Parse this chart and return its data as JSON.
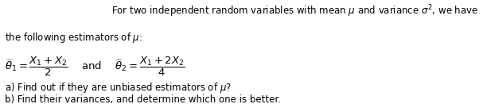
{
  "figsize": [
    6.07,
    1.31
  ],
  "dpi": 100,
  "background_color": "#d8d8d8",
  "card_color": "#ffffff",
  "text_color": "#000000",
  "line1": "For two independent random variables with mean $\\mu$ and variance $\\sigma^2$, we have",
  "line2": "the following estimators of $\\mu$:",
  "estimator_line": "$\\widehat{\\theta}_1 = \\dfrac{X_1+X_2}{2}\\quad$ and $\\quad\\widehat{\\theta}_2 = \\dfrac{X_1+2X_2}{4}$",
  "qa": "a) Find out if they are unbiased estimators of $\\mu$?",
  "qb": "b) Find their variances, and determine which one is better.",
  "font_size_main": 8.5,
  "font_size_estimator": 9.5,
  "font_size_qa": 8.5
}
